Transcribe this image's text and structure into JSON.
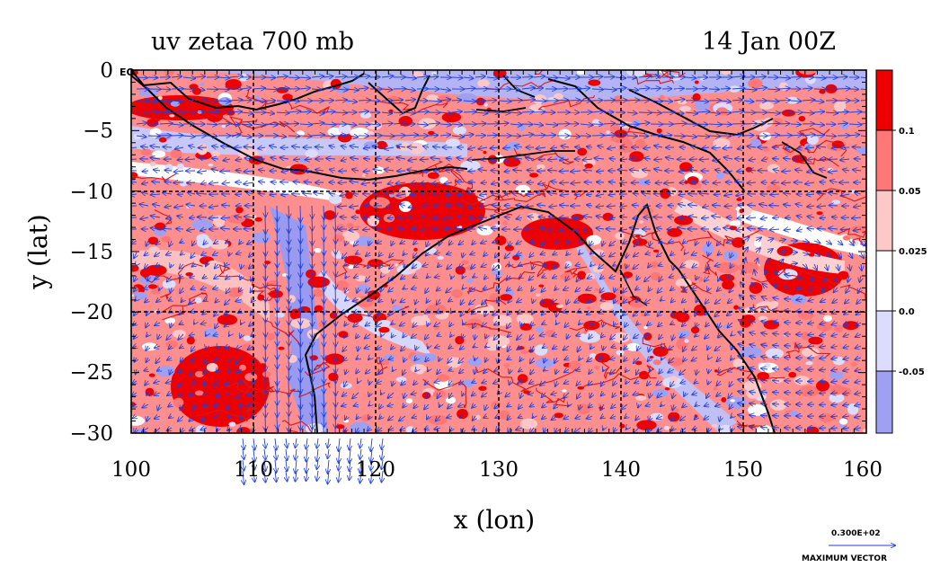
{
  "title_left": "uv zetaa 700 mb",
  "title_right": "14 Jan 00Z",
  "eq_label": "EQ",
  "xlabel": "x (lon)",
  "ylabel": "y (lat)",
  "x_ticks": [
    "100",
    "110",
    "120",
    "130",
    "140",
    "150",
    "160"
  ],
  "y_ticks": [
    "0",
    "−5",
    "−10",
    "−15",
    "−20",
    "−25",
    "−30"
  ],
  "colorbar": {
    "levels": [
      "0.1",
      "0.05",
      "0.025",
      "0.0",
      "-0.05"
    ],
    "colors": [
      "#ee0000",
      "#ff7777",
      "#ffc8c8",
      "#ffffff",
      "#dcdcff",
      "#a0a0f2"
    ]
  },
  "reference_vector": {
    "value": "0.300E+02",
    "label": "MAXIMUM VECTOR"
  },
  "colors": {
    "vector": "#1f3fd8",
    "contour": "#d81818",
    "coast": "#000000",
    "grid": "#000000"
  },
  "chart_data": {
    "type": "heatmap",
    "title": "uv zetaa 700 mb",
    "subtitle": "14 Jan 00Z",
    "xlabel": "x (lon)",
    "ylabel": "y (lat)",
    "xlim": [
      100,
      160
    ],
    "ylim": [
      -30,
      0
    ],
    "x_ticks": [
      100,
      110,
      120,
      130,
      140,
      150,
      160
    ],
    "y_ticks": [
      0,
      -5,
      -10,
      -15,
      -20,
      -25,
      -30
    ],
    "grid": true,
    "colorbar_levels": [
      0.1,
      0.05,
      0.025,
      0.0,
      -0.05
    ],
    "overlay": "wind vectors (u, v) with coastlines",
    "reference_vector": 30
  }
}
